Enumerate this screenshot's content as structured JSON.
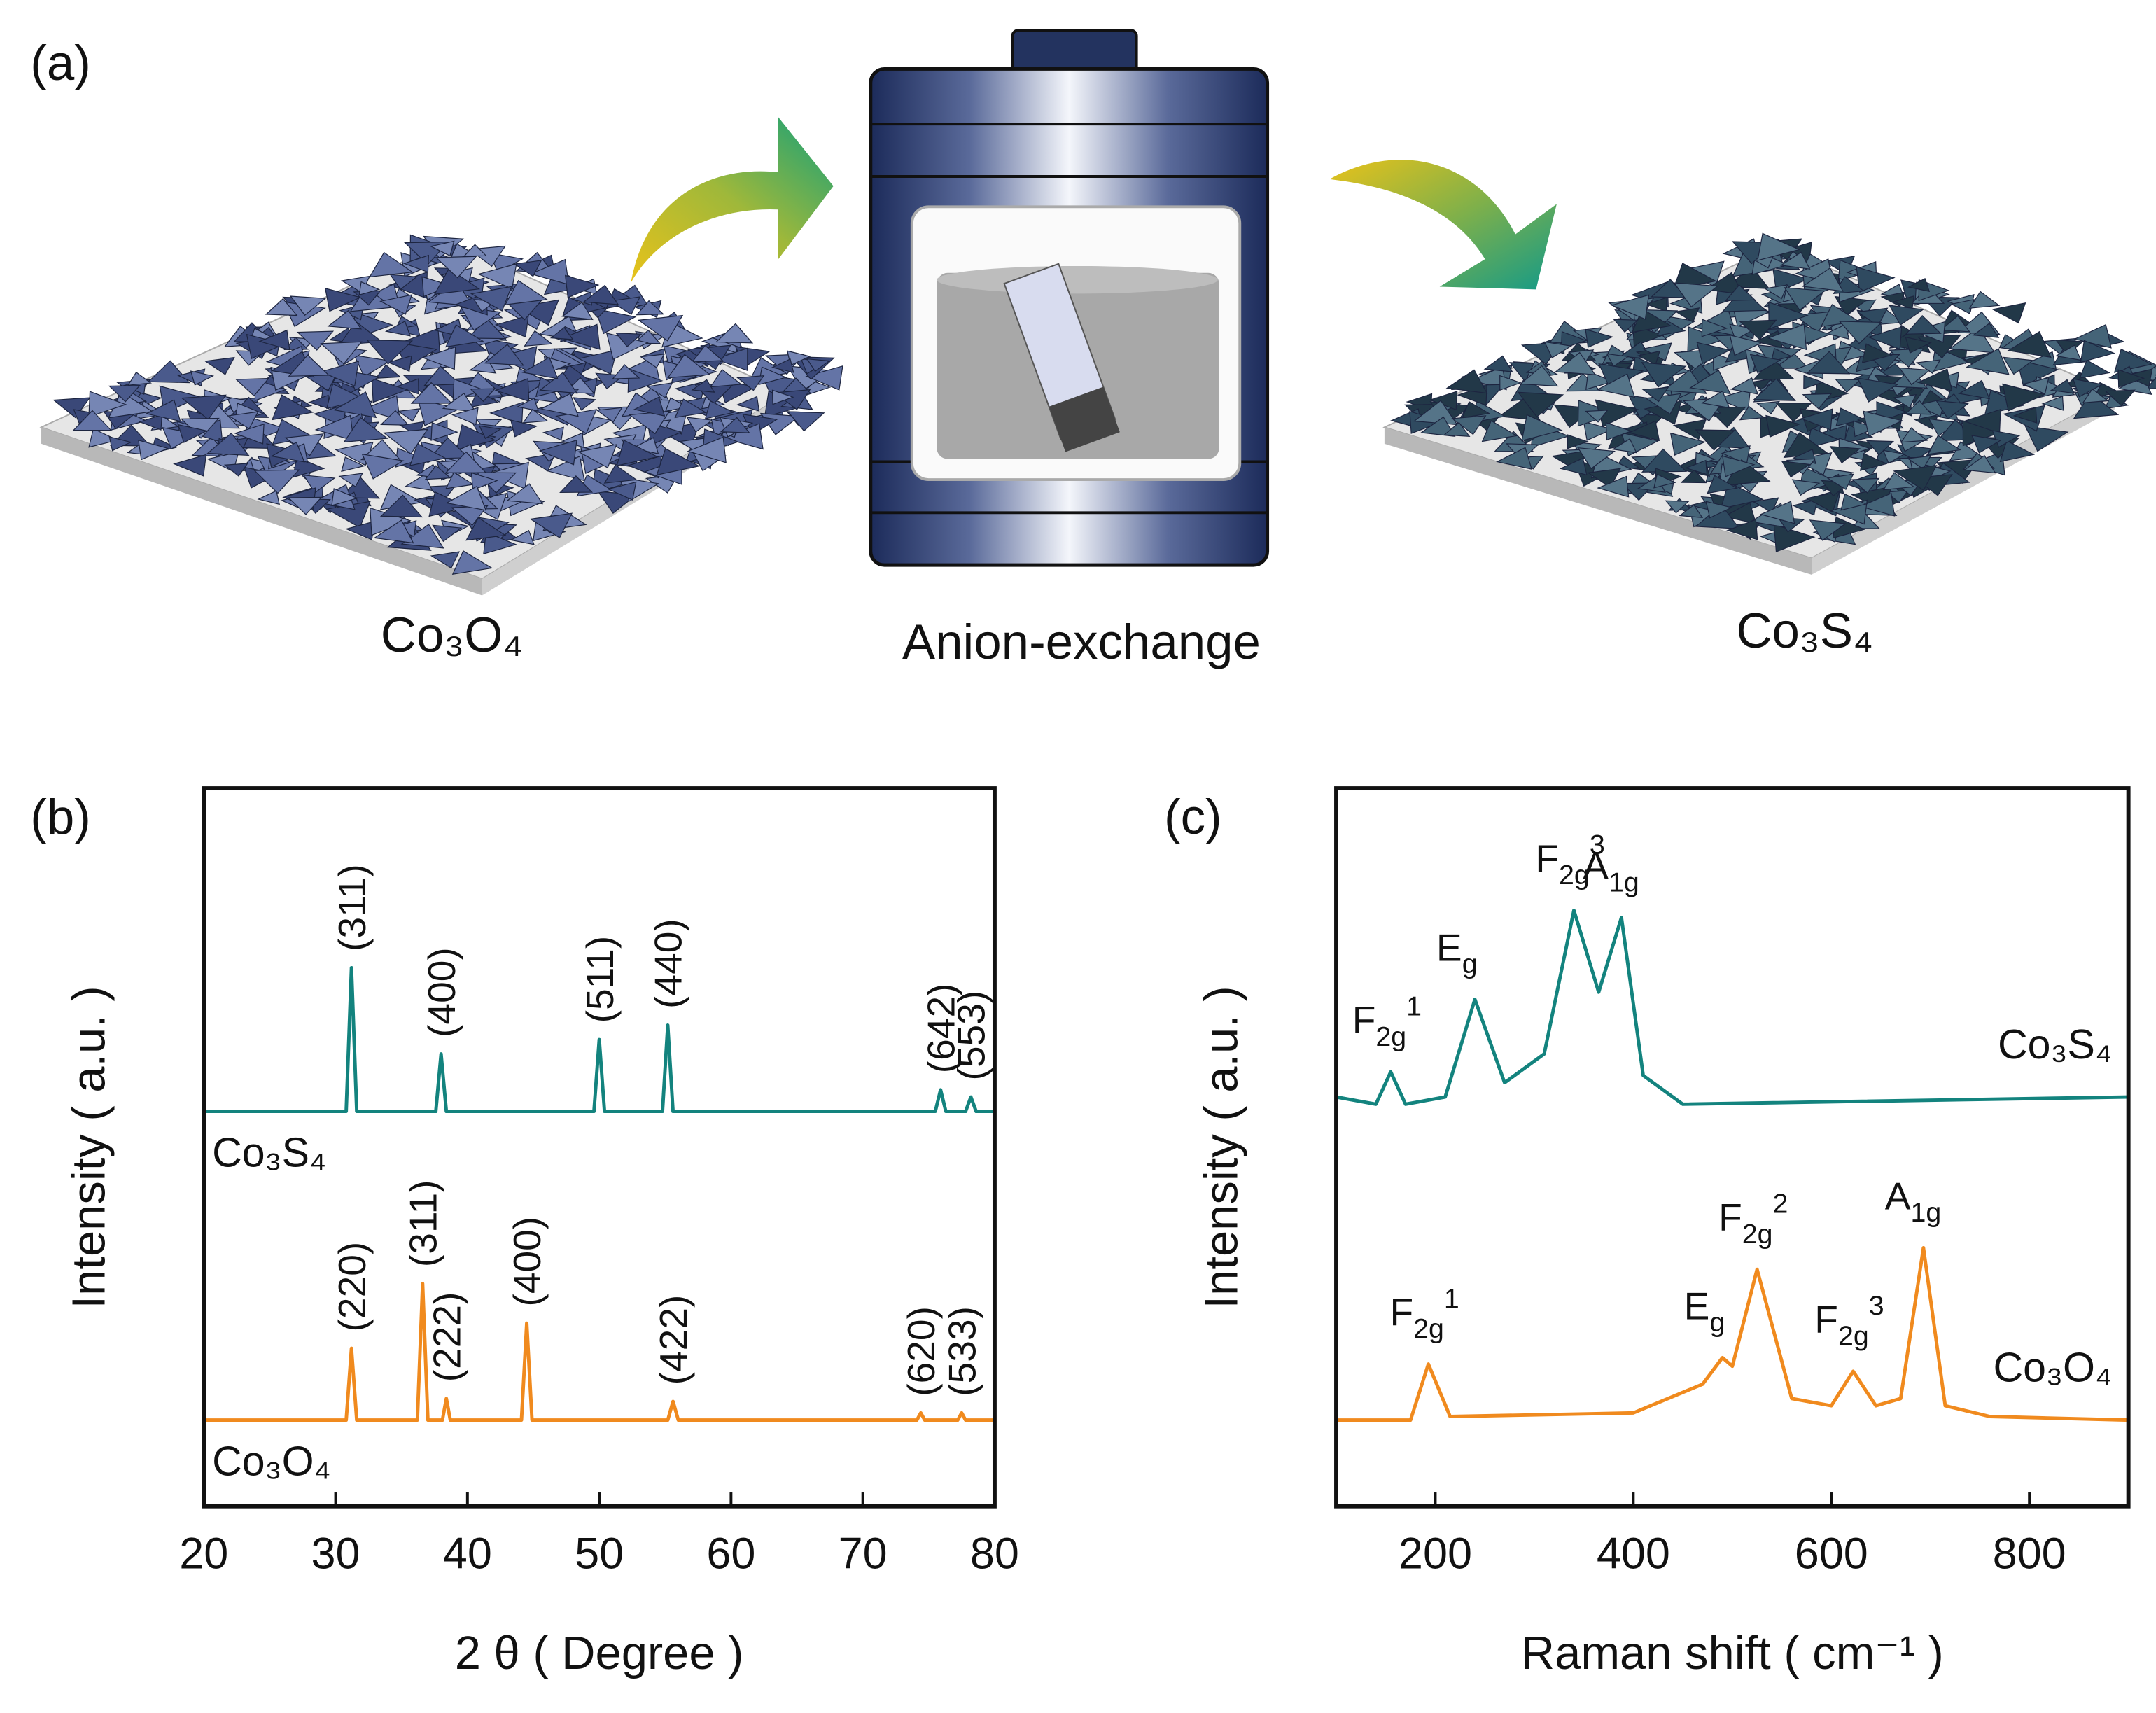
{
  "panels": {
    "a": "(a)",
    "b": "(b)",
    "c": "(c)"
  },
  "scheme": {
    "labels": [
      "Co₃O₄",
      "Anion-exchange",
      "Co₃S₄"
    ]
  },
  "chart_data": [
    {
      "type": "line",
      "xlabel": "2 θ ( Degree )",
      "ylabel": "Intensity ( a.u. )",
      "xlim": [
        20,
        80
      ],
      "xticks": [
        20,
        30,
        40,
        50,
        60,
        70,
        80
      ],
      "ylim": [
        0,
        100
      ],
      "series": [
        {
          "name": "Co₃S₄",
          "color": "#13837e",
          "x": [
            20,
            30.8,
            31.2,
            31.6,
            37.6,
            38,
            38.4,
            49.6,
            50,
            50.4,
            54.8,
            55.2,
            55.6,
            75.5,
            75.9,
            76.3,
            77.8,
            78.2,
            78.6,
            80
          ],
          "values": [
            55,
            55,
            75,
            55,
            55,
            63,
            55,
            55,
            65,
            55,
            55,
            67,
            55,
            55,
            58,
            55,
            55,
            57,
            55,
            55
          ],
          "peaks": [
            {
              "text": "(311)",
              "x": 31.2
            },
            {
              "text": "(400)",
              "x": 38
            },
            {
              "text": "(511)",
              "x": 50
            },
            {
              "text": "(440)",
              "x": 55.2
            },
            {
              "text": "(642)",
              "x": 75.9
            },
            {
              "text": "(553)",
              "x": 78.2
            }
          ]
        },
        {
          "name": "Co₃O₄",
          "color": "#f08a1e",
          "x": [
            20,
            30.8,
            31.2,
            31.6,
            36.2,
            36.6,
            37.0,
            38.1,
            38.4,
            38.7,
            44.1,
            44.5,
            44.9,
            55.2,
            55.6,
            56.0,
            74.1,
            74.4,
            74.7,
            77.2,
            77.5,
            77.8,
            80
          ],
          "values": [
            12,
            12,
            22,
            12,
            12,
            31,
            12,
            12,
            15,
            12,
            12,
            25.5,
            12,
            12,
            14.6,
            12,
            12,
            13,
            12,
            12,
            13,
            12,
            12
          ],
          "peaks": [
            {
              "text": "(220)",
              "x": 31.2
            },
            {
              "text": "(311)",
              "x": 36.6
            },
            {
              "text": "(222)",
              "x": 38.4
            },
            {
              "text": "(400)",
              "x": 44.5
            },
            {
              "text": "(422)",
              "x": 55.6
            },
            {
              "text": "(620)",
              "x": 74.4
            },
            {
              "text": "(533)",
              "x": 77.5
            }
          ]
        }
      ]
    },
    {
      "type": "line",
      "xlabel": "Raman shift ( cm⁻¹ )",
      "ylabel": "Intensity ( a.u. )",
      "xlim": [
        100,
        900
      ],
      "xticks": [
        200,
        400,
        600,
        800
      ],
      "ylim": [
        0,
        100
      ],
      "series": [
        {
          "name": "Co₃S₄",
          "color": "#13837e",
          "x": [
            100,
            140,
            155,
            170,
            210,
            240,
            270,
            310,
            340,
            365,
            388,
            410,
            450,
            900
          ],
          "values": [
            57,
            56,
            60.5,
            56,
            57,
            70.6,
            59,
            63,
            83,
            71.6,
            82,
            60,
            56,
            57
          ],
          "peaks": [
            {
              "text": "F",
              "sub": "2g",
              "sup": "1",
              "x": 155
            },
            {
              "text": "E",
              "sub": "g",
              "x": 240
            },
            {
              "text": "F",
              "sub": "2g",
              "sup": "3",
              "x": 340
            },
            {
              "text": "A",
              "sub": "1g",
              "x": 388
            }
          ]
        },
        {
          "name": "Co₃O₄",
          "color": "#f08a1e",
          "x": [
            100,
            175,
            193,
            215,
            400,
            470,
            490,
            500,
            525,
            560,
            600,
            622,
            645,
            670,
            693,
            715,
            760,
            900
          ],
          "values": [
            12,
            12,
            19.8,
            12.5,
            13,
            17,
            20.7,
            19.5,
            33,
            15,
            14,
            18.8,
            14,
            15,
            36,
            14,
            12.5,
            12
          ],
          "peaks": [
            {
              "text": "F",
              "sub": "2g",
              "sup": "1",
              "x": 193
            },
            {
              "text": "E",
              "sub": "g",
              "x": 490
            },
            {
              "text": "F",
              "sub": "2g",
              "sup": "2",
              "x": 525
            },
            {
              "text": "F",
              "sub": "2g",
              "sup": "3",
              "x": 622
            },
            {
              "text": "A",
              "sub": "1g",
              "x": 693
            }
          ]
        }
      ]
    }
  ]
}
